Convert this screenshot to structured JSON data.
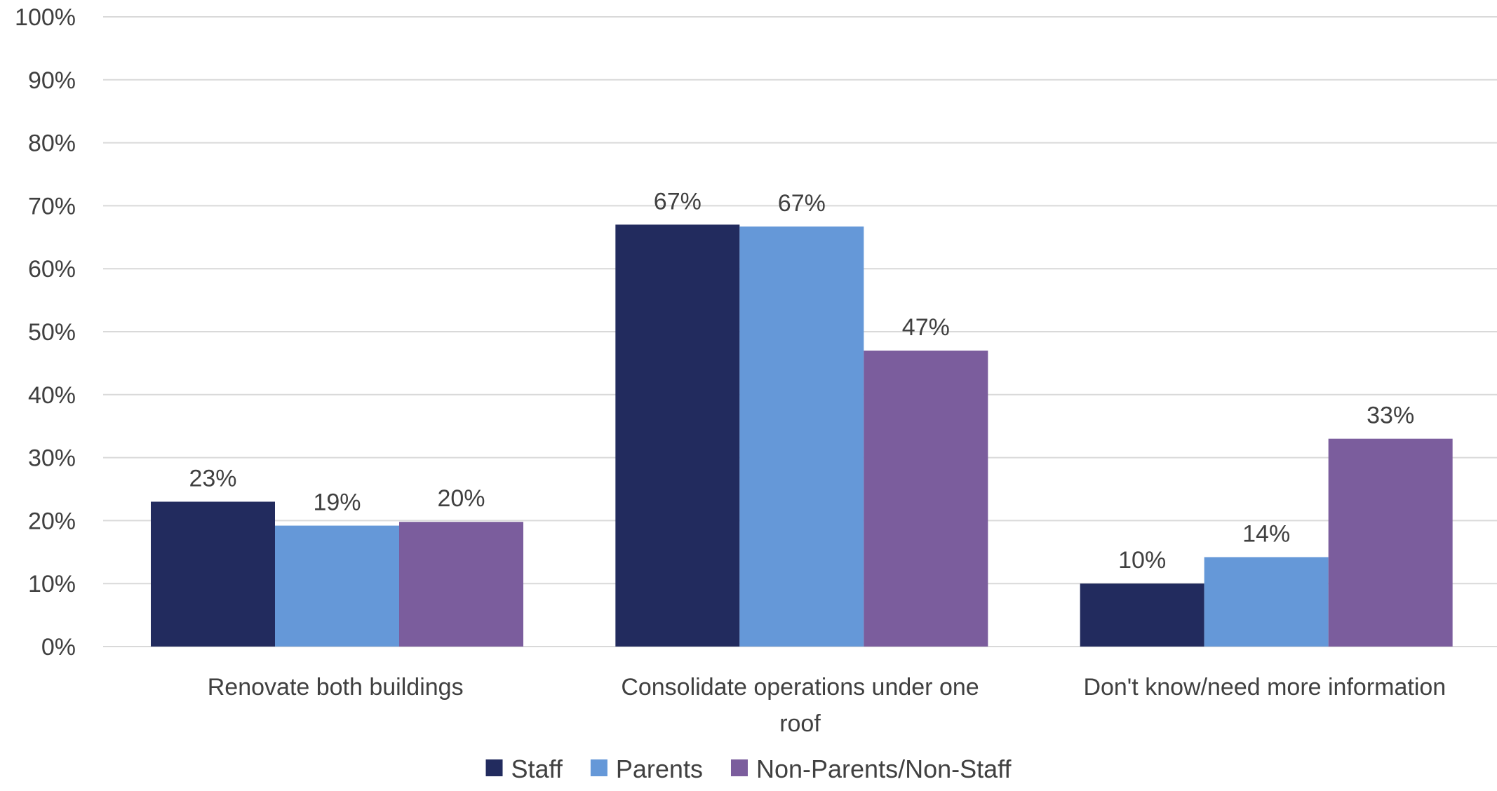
{
  "chart_data": {
    "type": "bar",
    "title": "",
    "xlabel": "",
    "ylabel": "",
    "ylim": [
      0,
      100
    ],
    "y_ticks": [
      0,
      10,
      20,
      30,
      40,
      50,
      60,
      70,
      80,
      90,
      100
    ],
    "y_tick_labels": [
      "0%",
      "10%",
      "20%",
      "30%",
      "40%",
      "50%",
      "60%",
      "70%",
      "80%",
      "90%",
      "100%"
    ],
    "grid": true,
    "legend_position": "bottom",
    "categories": [
      [
        "Renovate both buildings"
      ],
      [
        "Consolidate operations under one",
        "roof"
      ],
      [
        "Don't know/need more information"
      ]
    ],
    "series": [
      {
        "name": "Staff",
        "color": "#222B5E",
        "values": [
          23,
          67,
          10
        ],
        "labels": [
          "23%",
          "67%",
          "10%"
        ]
      },
      {
        "name": "Parents",
        "color": "#6598D8",
        "values": [
          19.2,
          66.7,
          14.2
        ],
        "labels": [
          "19%",
          "67%",
          "14%"
        ]
      },
      {
        "name": "Non-Parents/Non-Staff",
        "color": "#7B5D9D",
        "values": [
          19.8,
          47,
          33
        ],
        "labels": [
          "20%",
          "47%",
          "33%"
        ]
      }
    ]
  }
}
